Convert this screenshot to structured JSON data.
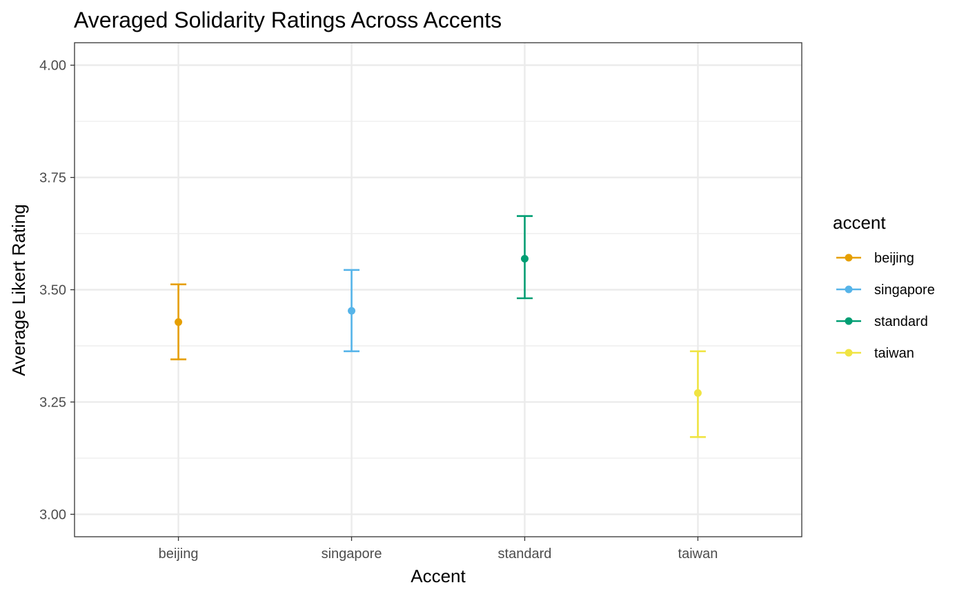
{
  "chart_data": {
    "type": "scatter",
    "title": "Averaged Solidarity Ratings Across Accents",
    "xlabel": "Accent",
    "ylabel": "Average Likert Rating",
    "categories": [
      "beijing",
      "singapore",
      "standard",
      "taiwan"
    ],
    "ylim": [
      2.95,
      4.05
    ],
    "yticks": [
      3.0,
      3.25,
      3.5,
      3.75,
      4.0
    ],
    "ytick_labels": [
      "3.00",
      "3.25",
      "3.50",
      "3.75",
      "4.00"
    ],
    "grid": true,
    "legend": {
      "title": "accent",
      "position": "right",
      "entries": [
        "beijing",
        "singapore",
        "standard",
        "taiwan"
      ]
    },
    "series": [
      {
        "name": "beijing",
        "category": "beijing",
        "mean": 3.428,
        "lower": 3.345,
        "upper": 3.512,
        "color": "#E69F00"
      },
      {
        "name": "singapore",
        "category": "singapore",
        "mean": 3.453,
        "lower": 3.363,
        "upper": 3.544,
        "color": "#56B4E9"
      },
      {
        "name": "standard",
        "category": "standard",
        "mean": 3.569,
        "lower": 3.481,
        "upper": 3.664,
        "color": "#009E73"
      },
      {
        "name": "taiwan",
        "category": "taiwan",
        "mean": 3.27,
        "lower": 3.172,
        "upper": 3.363,
        "color": "#F0E442"
      }
    ]
  }
}
